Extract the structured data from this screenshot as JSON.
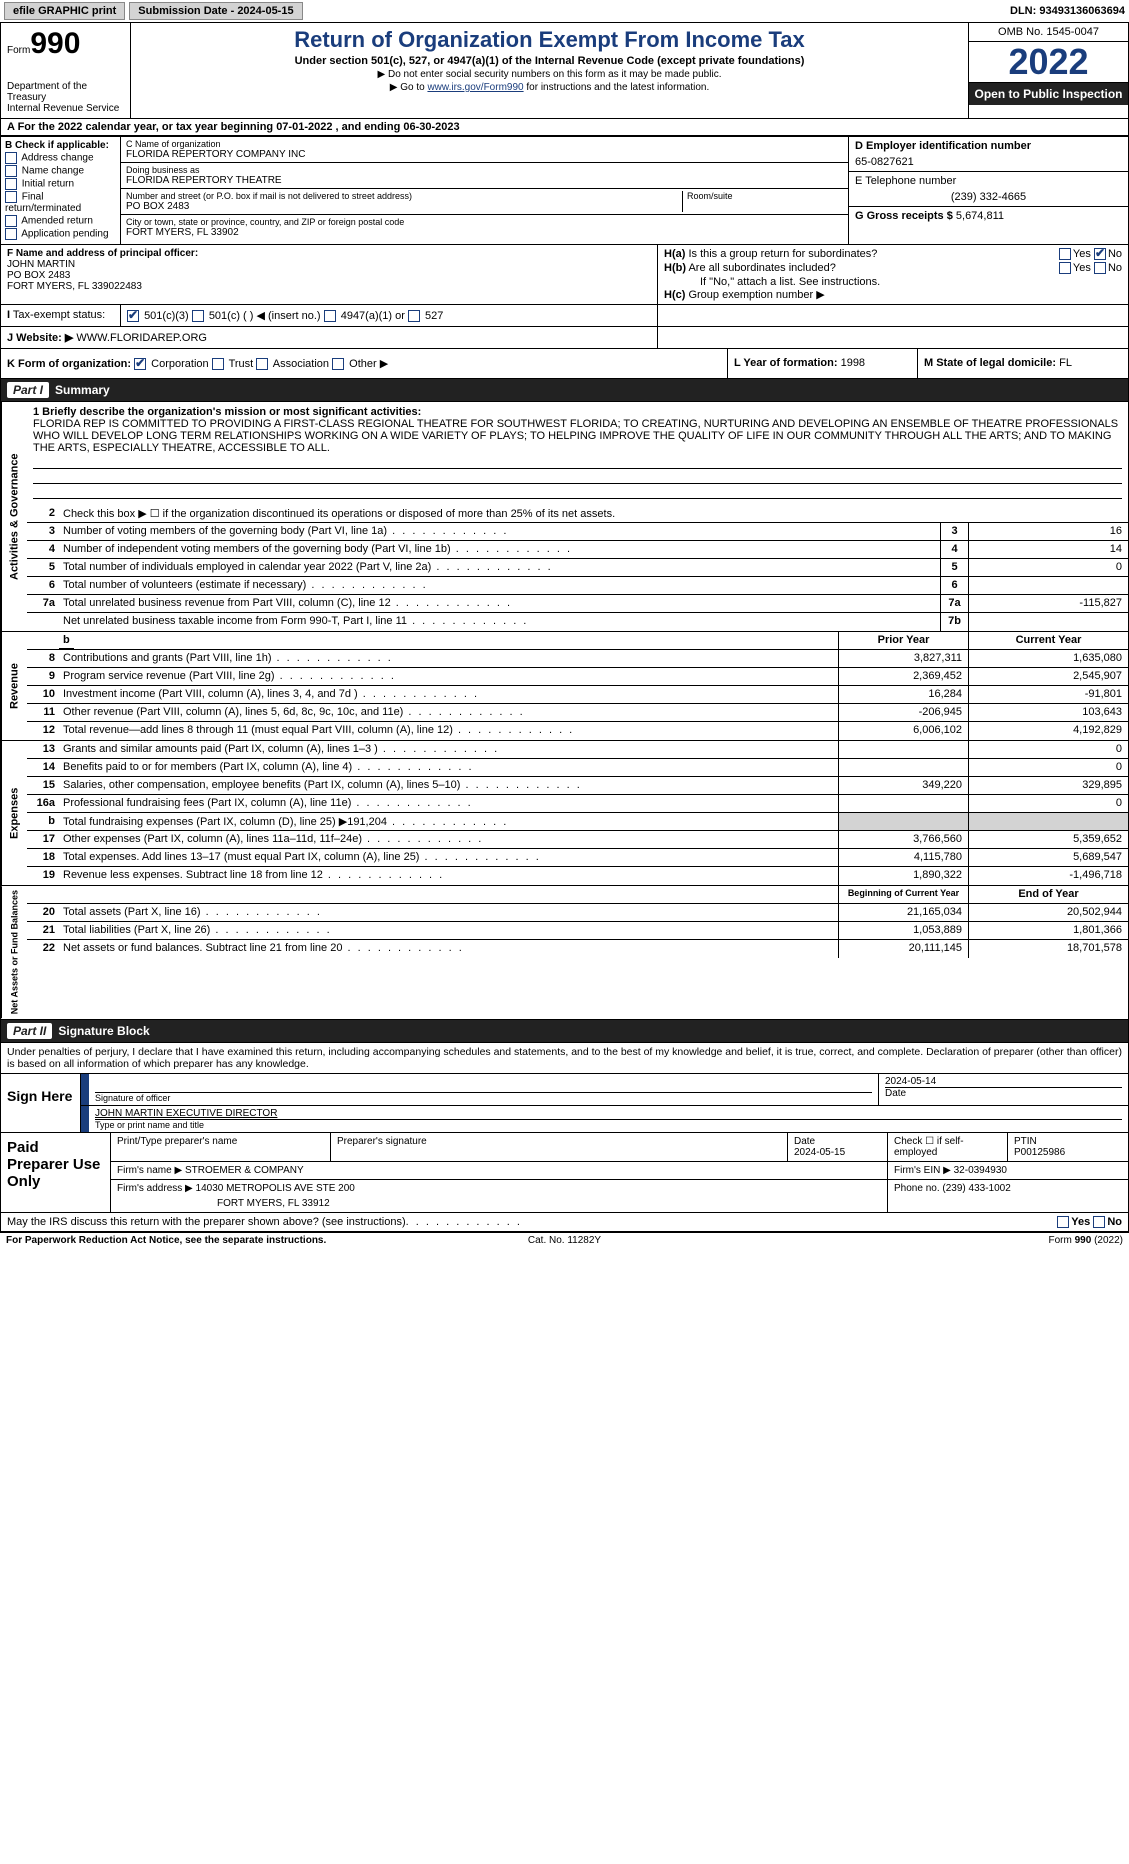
{
  "topbar": {
    "efile": "efile GRAPHIC print",
    "submission": "Submission Date - 2024-05-15",
    "dln": "DLN: 93493136063694"
  },
  "header": {
    "form_label": "Form",
    "form_number": "990",
    "title": "Return of Organization Exempt From Income Tax",
    "sub1": "Under section 501(c), 527, or 4947(a)(1) of the Internal Revenue Code (except private foundations)",
    "sub2a": "▶ Do not enter social security numbers on this form as it may be made public.",
    "sub2b_pre": "▶ Go to ",
    "sub2b_link": "www.irs.gov/Form990",
    "sub2b_post": " for instructions and the latest information.",
    "dept": "Department of the Treasury",
    "irs": "Internal Revenue Service",
    "omb": "OMB No. 1545-0047",
    "year": "2022",
    "open_public": "Open to Public Inspection"
  },
  "row_a": {
    "text_a": "A For the 2022 calendar year, or tax year beginning 07-01-2022",
    "text_b": "  , and ending 06-30-2023"
  },
  "col_b": {
    "title": "B Check if applicable:",
    "items": [
      "Address change",
      "Name change",
      "Initial return",
      "Final return/terminated",
      "Amended return",
      "Application pending"
    ]
  },
  "col_c": {
    "name_label": "C Name of organization",
    "name": "FLORIDA REPERTORY COMPANY INC",
    "dba_label": "Doing business as",
    "dba": "FLORIDA REPERTORY THEATRE",
    "street_label": "Number and street (or P.O. box if mail is not delivered to street address)",
    "street": "PO BOX 2483",
    "room_label": "Room/suite",
    "city_label": "City or town, state or province, country, and ZIP or foreign postal code",
    "city": "FORT MYERS, FL  33902"
  },
  "col_d": {
    "d_label": "D Employer identification number",
    "d_val": "65-0827621",
    "e_label": "E Telephone number",
    "e_val": "(239) 332-4665",
    "g_label": "G Gross receipts $",
    "g_val": "5,674,811"
  },
  "col_f": {
    "label": "F  Name and address of principal officer:",
    "name": "JOHN MARTIN",
    "street": "PO BOX 2483",
    "city": "FORT MYERS, FL  339022483"
  },
  "col_h": {
    "ha": "H(a)  Is this a group return for subordinates?",
    "hb": "H(b)  Are all subordinates included?",
    "hb_note": "If \"No,\" attach a list. See instructions.",
    "hc": "H(c)  Group exemption number ▶",
    "yes": "Yes",
    "no": "No"
  },
  "row_i": {
    "label": "I   Tax-exempt status:",
    "opts": [
      "501(c)(3)",
      "501(c) (   ) ◀ (insert no.)",
      "4947(a)(1) or",
      "527"
    ]
  },
  "row_j": {
    "label": "J   Website: ▶",
    "val": " WWW.FLORIDAREP.ORG"
  },
  "row_k": {
    "label": "K Form of organization:",
    "opts": [
      "Corporation",
      "Trust",
      "Association",
      "Other ▶"
    ],
    "l_label": "L Year of formation:",
    "l_val": "1998",
    "m_label": "M State of legal domicile:",
    "m_val": "FL"
  },
  "part1": {
    "header_num": "Part I",
    "header_title": "Summary",
    "side_labels": [
      "Activities & Governance",
      "Revenue",
      "Expenses",
      "Net Assets or Fund Balances"
    ],
    "line1_label": "1  Briefly describe the organization's mission or most significant activities:",
    "mission": "FLORIDA REP IS COMMITTED TO PROVIDING A FIRST-CLASS REGIONAL THEATRE FOR SOUTHWEST FLORIDA; TO CREATING, NURTURING AND DEVELOPING AN ENSEMBLE OF THEATRE PROFESSIONALS WHO WILL DEVELOP LONG TERM RELATIONSHIPS WORKING ON A WIDE VARIETY OF PLAYS; TO HELPING IMPROVE THE QUALITY OF LIFE IN OUR COMMUNITY THROUGH ALL THE ARTS; AND TO MAKING THE ARTS, ESPECIALLY THEATRE, ACCESSIBLE TO ALL.",
    "gov_lines": [
      {
        "n": "2",
        "desc": "Check this box ▶ ☐  if the organization discontinued its operations or disposed of more than 25% of its net assets.",
        "nobox": true
      },
      {
        "n": "3",
        "desc": "Number of voting members of the governing body (Part VI, line 1a)",
        "box": "3",
        "val": "16"
      },
      {
        "n": "4",
        "desc": "Number of independent voting members of the governing body (Part VI, line 1b)",
        "box": "4",
        "val": "14"
      },
      {
        "n": "5",
        "desc": "Total number of individuals employed in calendar year 2022 (Part V, line 2a)",
        "box": "5",
        "val": "0"
      },
      {
        "n": "6",
        "desc": "Total number of volunteers (estimate if necessary)",
        "box": "6",
        "val": ""
      },
      {
        "n": "7a",
        "desc": "Total unrelated business revenue from Part VIII, column (C), line 12",
        "box": "7a",
        "val": "-115,827"
      },
      {
        "n": "",
        "desc": "Net unrelated business taxable income from Form 990-T, Part I, line 11",
        "box": "7b",
        "val": ""
      }
    ],
    "col_headers": {
      "prior": "Prior Year",
      "current": "Current Year",
      "beg": "Beginning of Current Year",
      "end": "End of Year"
    },
    "rev_lines": [
      {
        "n": "8",
        "desc": "Contributions and grants (Part VIII, line 1h)",
        "prior": "3,827,311",
        "cur": "1,635,080"
      },
      {
        "n": "9",
        "desc": "Program service revenue (Part VIII, line 2g)",
        "prior": "2,369,452",
        "cur": "2,545,907"
      },
      {
        "n": "10",
        "desc": "Investment income (Part VIII, column (A), lines 3, 4, and 7d )",
        "prior": "16,284",
        "cur": "-91,801"
      },
      {
        "n": "11",
        "desc": "Other revenue (Part VIII, column (A), lines 5, 6d, 8c, 9c, 10c, and 11e)",
        "prior": "-206,945",
        "cur": "103,643"
      },
      {
        "n": "12",
        "desc": "Total revenue—add lines 8 through 11 (must equal Part VIII, column (A), line 12)",
        "prior": "6,006,102",
        "cur": "4,192,829"
      }
    ],
    "exp_lines": [
      {
        "n": "13",
        "desc": "Grants and similar amounts paid (Part IX, column (A), lines 1–3 )",
        "prior": "",
        "cur": "0"
      },
      {
        "n": "14",
        "desc": "Benefits paid to or for members (Part IX, column (A), line 4)",
        "prior": "",
        "cur": "0"
      },
      {
        "n": "15",
        "desc": "Salaries, other compensation, employee benefits (Part IX, column (A), lines 5–10)",
        "prior": "349,220",
        "cur": "329,895"
      },
      {
        "n": "16a",
        "desc": "Professional fundraising fees (Part IX, column (A), line 11e)",
        "prior": "",
        "cur": "0"
      },
      {
        "n": "b",
        "desc": "Total fundraising expenses (Part IX, column (D), line 25) ▶191,204",
        "prior": "shaded",
        "cur": "shaded"
      },
      {
        "n": "17",
        "desc": "Other expenses (Part IX, column (A), lines 11a–11d, 11f–24e)",
        "prior": "3,766,560",
        "cur": "5,359,652"
      },
      {
        "n": "18",
        "desc": "Total expenses. Add lines 13–17 (must equal Part IX, column (A), line 25)",
        "prior": "4,115,780",
        "cur": "5,689,547"
      },
      {
        "n": "19",
        "desc": "Revenue less expenses. Subtract line 18 from line 12",
        "prior": "1,890,322",
        "cur": "-1,496,718"
      }
    ],
    "net_lines": [
      {
        "n": "20",
        "desc": "Total assets (Part X, line 16)",
        "prior": "21,165,034",
        "cur": "20,502,944"
      },
      {
        "n": "21",
        "desc": "Total liabilities (Part X, line 26)",
        "prior": "1,053,889",
        "cur": "1,801,366"
      },
      {
        "n": "22",
        "desc": "Net assets or fund balances. Subtract line 21 from line 20",
        "prior": "20,111,145",
        "cur": "18,701,578"
      }
    ]
  },
  "part2": {
    "header_num": "Part II",
    "header_title": "Signature Block",
    "intro": "Under penalties of perjury, I declare that I have examined this return, including accompanying schedules and statements, and to the best of my knowledge and belief, it is true, correct, and complete. Declaration of preparer (other than officer) is based on all information of which preparer has any knowledge.",
    "sign_here": "Sign Here",
    "sig_officer_label": "Signature of officer",
    "date_label": "Date",
    "sig_date": "2024-05-14",
    "name_title": "JOHN MARTIN  EXECUTIVE DIRECTOR",
    "name_title_label": "Type or print name and title",
    "paid_prep": "Paid Preparer Use Only",
    "prep_name_label": "Print/Type preparer's name",
    "prep_sig_label": "Preparer's signature",
    "prep_date_label": "Date",
    "prep_date": "2024-05-15",
    "self_emp_label": "Check ☐ if self-employed",
    "ptin_label": "PTIN",
    "ptin": "P00125986",
    "firm_name_label": "Firm's name    ▶",
    "firm_name": "STROEMER & COMPANY",
    "firm_ein_label": "Firm's EIN ▶",
    "firm_ein": "32-0394930",
    "firm_addr_label": "Firm's address ▶",
    "firm_addr1": "14030 METROPOLIS AVE STE 200",
    "firm_addr2": "FORT MYERS, FL  33912",
    "phone_label": "Phone no.",
    "phone": "(239) 433-1002",
    "discuss": "May the IRS discuss this return with the preparer shown above? (see instructions)"
  },
  "footer": {
    "left": "For Paperwork Reduction Act Notice, see the separate instructions.",
    "mid": "Cat. No. 11282Y",
    "right_a": "Form ",
    "right_b": "990",
    "right_c": " (2022)"
  },
  "colors": {
    "accent": "#1a3d7c",
    "dark": "#222222",
    "shade": "#d3d3d3"
  }
}
